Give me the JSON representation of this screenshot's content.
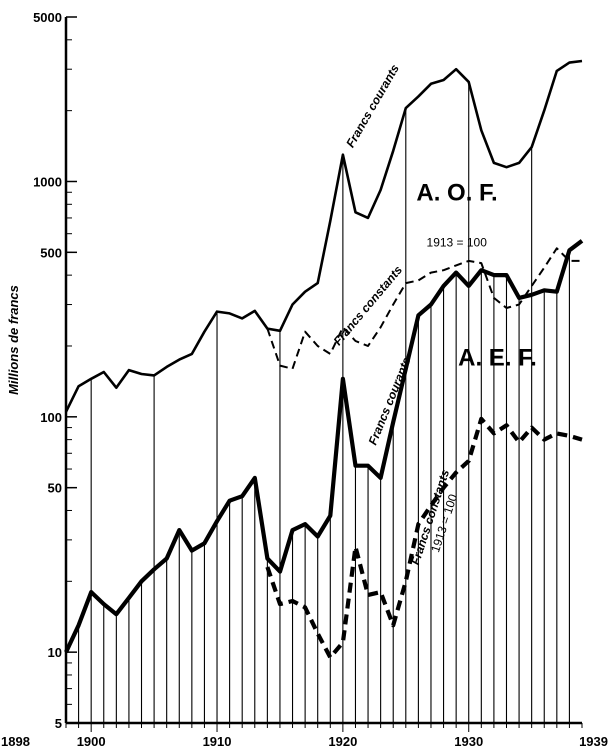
{
  "chart_data": {
    "type": "line",
    "ylabel": "Millions de francs",
    "yscale": "log",
    "ylim": [
      5,
      5000
    ],
    "xlim": [
      1898,
      1939
    ],
    "y_ticks": [
      5,
      10,
      50,
      100,
      500,
      1000,
      5000
    ],
    "y_tick_labels": [
      "5",
      "10",
      "50",
      "100",
      "500",
      "1000",
      "5000"
    ],
    "x_ticks": [
      1898,
      1900,
      1910,
      1920,
      1930,
      1939
    ],
    "x_tick_labels": [
      "1898",
      "1900",
      "1910",
      "1920",
      "1930",
      "1939"
    ],
    "grid": false,
    "regions": [
      {
        "label": "A. O. F."
      },
      {
        "label": "A. E. F."
      }
    ],
    "series": [
      {
        "name": "Francs courants",
        "region": "A. O. F.",
        "style": "solid",
        "x": [
          1898,
          1899,
          1900,
          1901,
          1902,
          1903,
          1904,
          1905,
          1906,
          1907,
          1908,
          1909,
          1910,
          1911,
          1912,
          1913,
          1914,
          1915,
          1916,
          1917,
          1918,
          1919,
          1920,
          1921,
          1922,
          1923,
          1924,
          1925,
          1926,
          1927,
          1928,
          1929,
          1930,
          1931,
          1932,
          1933,
          1934,
          1935,
          1936,
          1937,
          1938,
          1939
        ],
        "values": [
          105,
          135,
          145,
          155,
          133,
          158,
          152,
          150,
          163,
          175,
          185,
          230,
          280,
          275,
          262,
          282,
          237,
          232,
          300,
          340,
          370,
          680,
          1300,
          740,
          700,
          920,
          1350,
          2050,
          2300,
          2600,
          2700,
          3000,
          2650,
          1650,
          1200,
          1150,
          1200,
          1400,
          2000,
          2950,
          3200,
          3250
        ]
      },
      {
        "name": "Francs constants",
        "label_extra": "1913 = 100",
        "region": "A. O. F.",
        "style": "dashed",
        "x": [
          1914,
          1915,
          1916,
          1917,
          1918,
          1919,
          1920,
          1921,
          1922,
          1923,
          1924,
          1925,
          1926,
          1927,
          1928,
          1929,
          1930,
          1931,
          1932,
          1933,
          1934,
          1935,
          1936,
          1937,
          1938,
          1939
        ],
        "values": [
          237,
          165,
          160,
          230,
          200,
          185,
          240,
          210,
          200,
          240,
          300,
          370,
          380,
          410,
          420,
          440,
          460,
          450,
          320,
          290,
          300,
          360,
          430,
          520,
          460,
          460
        ]
      },
      {
        "name": "Francs courants",
        "region": "A. E. F.",
        "style": "solid-bold",
        "x": [
          1898,
          1899,
          1900,
          1901,
          1902,
          1903,
          1904,
          1905,
          1906,
          1907,
          1908,
          1909,
          1910,
          1911,
          1912,
          1913,
          1914,
          1915,
          1916,
          1917,
          1918,
          1919,
          1920,
          1921,
          1922,
          1923,
          1924,
          1925,
          1926,
          1927,
          1928,
          1929,
          1930,
          1931,
          1932,
          1933,
          1934,
          1935,
          1936,
          1937,
          1938,
          1939
        ],
        "values": [
          10,
          13,
          18,
          16,
          14.5,
          17,
          20,
          22.5,
          25,
          33,
          27,
          29,
          36,
          44,
          46,
          55,
          25,
          22,
          33,
          35,
          31,
          38,
          145,
          62,
          62,
          55,
          95,
          160,
          270,
          300,
          360,
          410,
          360,
          420,
          400,
          400,
          320,
          330,
          345,
          340,
          510,
          560
        ]
      },
      {
        "name": "Francs constants",
        "label_extra": "1913 = 100",
        "region": "A. E. F.",
        "style": "dashed-bold",
        "x": [
          1914,
          1915,
          1916,
          1917,
          1918,
          1919,
          1920,
          1921,
          1922,
          1923,
          1924,
          1925,
          1926,
          1927,
          1928,
          1929,
          1930,
          1931,
          1932,
          1933,
          1934,
          1935,
          1936,
          1937,
          1938,
          1939
        ],
        "values": [
          23,
          16,
          16.5,
          15.5,
          12,
          9.5,
          11,
          28,
          17.5,
          18,
          13,
          20,
          35,
          42,
          50,
          58,
          65,
          98,
          85,
          92,
          78,
          90,
          80,
          85,
          83,
          80
        ]
      }
    ]
  }
}
